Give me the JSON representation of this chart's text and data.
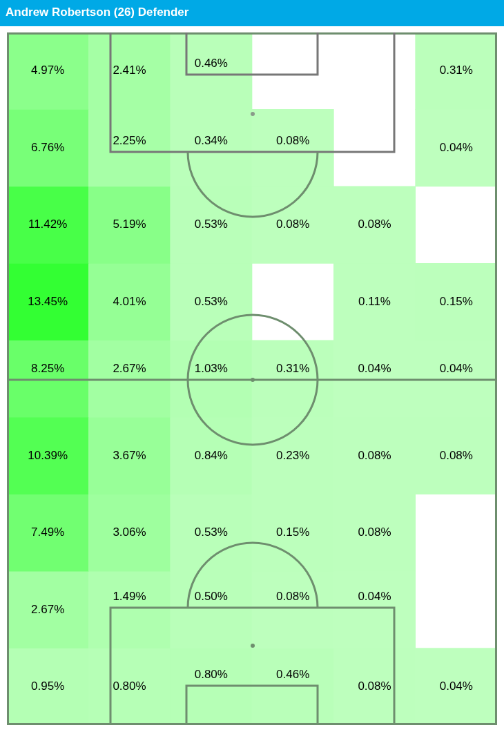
{
  "chart_data": {
    "type": "heatmap",
    "title": "Andrew Robertson (26) Defender",
    "categories": [
      null,
      null,
      null,
      null,
      null,
      null
    ],
    "y_categories": [
      null,
      null,
      null,
      null,
      null,
      null,
      null,
      null,
      null
    ],
    "cells": [
      [
        4.97,
        2.41,
        0.46,
        null,
        null,
        0.31
      ],
      [
        6.76,
        2.25,
        0.34,
        0.08,
        null,
        0.04
      ],
      [
        11.42,
        5.19,
        0.53,
        0.08,
        0.08,
        null
      ],
      [
        13.45,
        4.01,
        0.53,
        null,
        0.11,
        0.15
      ],
      [
        8.25,
        2.67,
        1.03,
        0.31,
        0.04,
        0.04
      ],
      [
        10.39,
        3.67,
        0.84,
        0.23,
        0.08,
        0.08
      ],
      [
        7.49,
        3.06,
        0.53,
        0.15,
        0.08,
        null
      ],
      [
        2.67,
        1.49,
        0.5,
        0.08,
        0.04,
        null
      ],
      [
        0.95,
        0.8,
        0.8,
        0.46,
        0.08,
        0.04
      ]
    ],
    "cell_labels": [
      [
        "4.97%",
        "2.41%",
        "0.46%",
        null,
        null,
        "0.31%"
      ],
      [
        "6.76%",
        "2.25%",
        "0.34%",
        "0.08%",
        null,
        "0.04%"
      ],
      [
        "11.42%",
        "5.19%",
        "0.53%",
        "0.08%",
        "0.08%",
        null
      ],
      [
        "13.45%",
        "4.01%",
        "0.53%",
        null,
        "0.11%",
        "0.15%"
      ],
      [
        "8.25%",
        "2.67%",
        "1.03%",
        "0.31%",
        "0.04%",
        "0.04%"
      ],
      [
        "10.39%",
        "3.67%",
        "0.84%",
        "0.23%",
        "0.08%",
        "0.08%"
      ],
      [
        "7.49%",
        "3.06%",
        "0.53%",
        "0.15%",
        "0.08%",
        null
      ],
      [
        "2.67%",
        "1.49%",
        "0.50%",
        "0.08%",
        "0.04%",
        null
      ],
      [
        "0.95%",
        "0.80%",
        "0.80%",
        "0.46%",
        "0.08%",
        "0.04%"
      ]
    ]
  }
}
